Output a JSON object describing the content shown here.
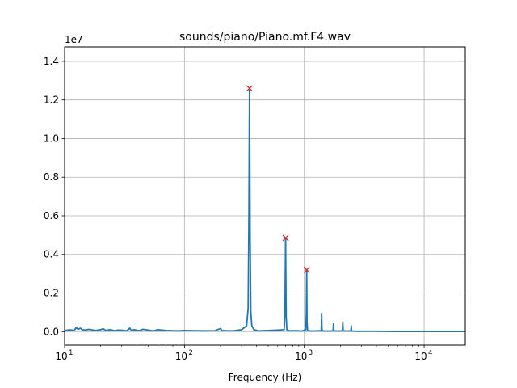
{
  "chart_data": {
    "type": "line",
    "title": "sounds/piano/Piano.mf.F4.wav",
    "xlabel": "Frequency (Hz)",
    "ylabel": "",
    "x_scale": "log",
    "xlim": [
      10,
      22050
    ],
    "ylim": [
      -0.07,
      1.475
    ],
    "y_multiplier_label": "1e7",
    "grid": true,
    "x_ticks": [
      {
        "value": 10,
        "base": "10",
        "exp": "1"
      },
      {
        "value": 100,
        "base": "10",
        "exp": "2"
      },
      {
        "value": 1000,
        "base": "10",
        "exp": "3"
      },
      {
        "value": 10000,
        "base": "10",
        "exp": "4"
      }
    ],
    "y_ticks": [
      {
        "value": 0.0,
        "label": "0.0"
      },
      {
        "value": 0.2,
        "label": "0.2"
      },
      {
        "value": 0.4,
        "label": "0.4"
      },
      {
        "value": 0.6,
        "label": "0.6"
      },
      {
        "value": 0.8,
        "label": "0.8"
      },
      {
        "value": 1.0,
        "label": "1.0"
      },
      {
        "value": 1.2,
        "label": "1.2"
      },
      {
        "value": 1.4,
        "label": "1.4"
      }
    ],
    "series": [
      {
        "color": "#1f77b4",
        "x": [
          10,
          11,
          12,
          12.5,
          13,
          13.5,
          14,
          15,
          16,
          18,
          20,
          21,
          22,
          24,
          26,
          28,
          30,
          33,
          35,
          36,
          38,
          42,
          45,
          50,
          55,
          60,
          70,
          80,
          90,
          100,
          120,
          150,
          180,
          200,
          205,
          230,
          260,
          300,
          330,
          340,
          345,
          349,
          353,
          358,
          365,
          380,
          420,
          500,
          600,
          680,
          690,
          698,
          706,
          715,
          750,
          850,
          950,
          1030,
          1040,
          1047,
          1054,
          1065,
          1150,
          1300,
          1385,
          1395,
          1405,
          1450,
          1600,
          1740,
          1750,
          1760,
          1900,
          2080,
          2095,
          2110,
          2300,
          2450,
          2465,
          2480,
          2700,
          3000,
          4000,
          6000,
          10000,
          15000,
          22050
        ],
        "y": [
          0.006,
          0.009,
          0.007,
          0.02,
          0.012,
          0.018,
          0.01,
          0.008,
          0.012,
          0.006,
          0.01,
          0.015,
          0.006,
          0.01,
          0.005,
          0.008,
          0.007,
          0.004,
          0.018,
          0.006,
          0.01,
          0.005,
          0.012,
          0.008,
          0.004,
          0.01,
          0.006,
          0.005,
          0.004,
          0.006,
          0.005,
          0.004,
          0.005,
          0.016,
          0.006,
          0.004,
          0.005,
          0.01,
          0.03,
          0.12,
          0.6,
          1.26,
          0.5,
          0.1,
          0.03,
          0.01,
          0.004,
          0.006,
          0.008,
          0.01,
          0.12,
          0.485,
          0.08,
          0.01,
          0.004,
          0.005,
          0.003,
          0.01,
          0.1,
          0.32,
          0.05,
          0.005,
          0.003,
          0.004,
          0.004,
          0.095,
          0.008,
          0.003,
          0.003,
          0.004,
          0.04,
          0.004,
          0.003,
          0.004,
          0.05,
          0.004,
          0.003,
          0.004,
          0.03,
          0.003,
          0.002,
          0.002,
          0.002,
          0.001,
          0.001,
          0.001,
          0.001
        ]
      }
    ],
    "peaks": {
      "color": "#d62728",
      "marker": "x",
      "x": [
        349,
        698,
        1047
      ],
      "y": [
        1.26,
        0.485,
        0.32
      ]
    }
  }
}
